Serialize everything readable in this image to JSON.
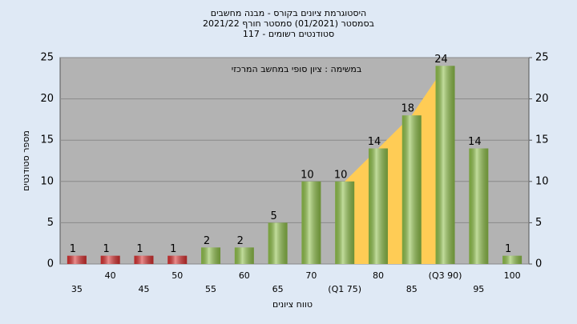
{
  "chart_data": {
    "type": "bar",
    "title": "היסטוגרמת ציונים בקורס - מבנה מחשבים",
    "subtitle": "בסמסטר  (01/2021)  סמסטר חורף 2021/22",
    "subtitle2": "סטודנטים רשומים - 117",
    "annotation": "במשימה : ציון סופי במחשב המרכזי",
    "x_label": "טווח ציונים",
    "y_label": "מספר סטודנטים",
    "categories": [
      "35",
      "40",
      "45",
      "50",
      "55",
      "60",
      "65",
      "70",
      "(Q1 75)",
      "80",
      "85",
      "(Q3 90)",
      "95",
      "100"
    ],
    "values": [
      1,
      1,
      1,
      1,
      2,
      2,
      5,
      10,
      10,
      14,
      18,
      24,
      14,
      1
    ],
    "colors": [
      "#d83030",
      "#d83030",
      "#d83030",
      "#d83030",
      "#8fc04a",
      "#8fc04a",
      "#8fc04a",
      "#8fc04a",
      "#8fc04a",
      "#8fc04a",
      "#8fc04a",
      "#8fc04a",
      "#8fc04a",
      "#8fc04a"
    ],
    "ylim": [
      0,
      25
    ],
    "yticks": [
      0,
      5,
      10,
      15,
      20,
      25
    ],
    "y2lim": [
      0,
      25
    ],
    "y2ticks": [
      0,
      5,
      10,
      15,
      20,
      25
    ],
    "grid": true
  }
}
